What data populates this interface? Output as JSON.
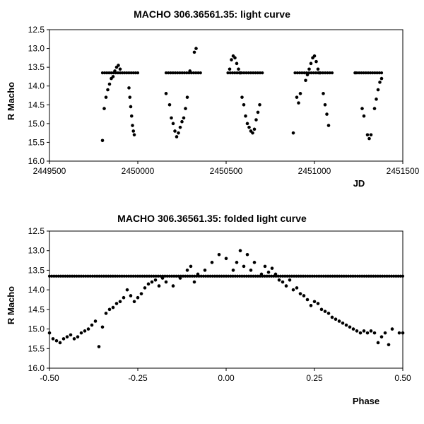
{
  "chart_data": [
    {
      "type": "scatter",
      "title": "MACHO 306.36561.35: light curve",
      "xlabel": "JD",
      "ylabel": "R Macho",
      "xlim": [
        2449500,
        2451500
      ],
      "ylim": [
        12.5,
        16.0
      ],
      "y_inverted": true,
      "xticks": [
        2449500,
        2450000,
        2450500,
        2451000,
        2451500
      ],
      "xtick_labels": [
        "2449500",
        "2450000",
        "2450500",
        "2451000",
        "2451500"
      ],
      "yticks": [
        12.5,
        13.0,
        13.5,
        14.0,
        14.5,
        15.0,
        15.5,
        16.0
      ],
      "ytick_labels": [
        "12.5",
        "13.0",
        "13.5",
        "14.0",
        "14.5",
        "15.0",
        "15.5",
        "16.0"
      ],
      "marker_color": "#000000",
      "baseline_segments": [
        {
          "x_start": 2449800,
          "x_end": 2450000,
          "y": 13.65
        },
        {
          "x_start": 2450160,
          "x_end": 2450355,
          "y": 13.65
        },
        {
          "x_start": 2450510,
          "x_end": 2450705,
          "y": 13.65
        },
        {
          "x_start": 2450890,
          "x_end": 2451100,
          "y": 13.65
        },
        {
          "x_start": 2451240,
          "x_end": 2451380,
          "y": 13.65
        }
      ],
      "points": [
        [
          2449800,
          15.45
        ],
        [
          2449810,
          14.6
        ],
        [
          2449820,
          14.3
        ],
        [
          2449830,
          14.1
        ],
        [
          2449840,
          13.95
        ],
        [
          2449850,
          13.8
        ],
        [
          2449860,
          13.75
        ],
        [
          2449870,
          13.6
        ],
        [
          2449880,
          13.5
        ],
        [
          2449890,
          13.45
        ],
        [
          2449900,
          13.55
        ],
        [
          2449950,
          14.05
        ],
        [
          2449955,
          14.3
        ],
        [
          2449960,
          14.55
        ],
        [
          2449965,
          14.8
        ],
        [
          2449970,
          15.05
        ],
        [
          2449975,
          15.2
        ],
        [
          2449980,
          15.3
        ],
        [
          2450160,
          14.2
        ],
        [
          2450180,
          14.5
        ],
        [
          2450190,
          14.85
        ],
        [
          2450200,
          15.0
        ],
        [
          2450210,
          15.2
        ],
        [
          2450220,
          15.35
        ],
        [
          2450230,
          15.25
        ],
        [
          2450240,
          15.1
        ],
        [
          2450250,
          14.95
        ],
        [
          2450260,
          14.85
        ],
        [
          2450270,
          14.6
        ],
        [
          2450280,
          14.3
        ],
        [
          2450295,
          13.6
        ],
        [
          2450320,
          13.1
        ],
        [
          2450330,
          13.0
        ],
        [
          2450520,
          13.55
        ],
        [
          2450530,
          13.3
        ],
        [
          2450540,
          13.2
        ],
        [
          2450550,
          13.25
        ],
        [
          2450560,
          13.4
        ],
        [
          2450570,
          13.55
        ],
        [
          2450580,
          13.65
        ],
        [
          2450590,
          14.3
        ],
        [
          2450600,
          14.5
        ],
        [
          2450610,
          14.8
        ],
        [
          2450620,
          15.0
        ],
        [
          2450630,
          15.1
        ],
        [
          2450640,
          15.2
        ],
        [
          2450650,
          15.25
        ],
        [
          2450660,
          15.15
        ],
        [
          2450670,
          14.9
        ],
        [
          2450680,
          14.7
        ],
        [
          2450690,
          14.5
        ],
        [
          2450880,
          15.25
        ],
        [
          2450900,
          14.3
        ],
        [
          2450910,
          14.45
        ],
        [
          2450920,
          14.2
        ],
        [
          2450950,
          13.85
        ],
        [
          2450960,
          13.7
        ],
        [
          2450970,
          13.55
        ],
        [
          2450980,
          13.4
        ],
        [
          2450990,
          13.25
        ],
        [
          2451000,
          13.2
        ],
        [
          2451010,
          13.35
        ],
        [
          2451020,
          13.55
        ],
        [
          2451030,
          13.65
        ],
        [
          2451050,
          14.2
        ],
        [
          2451060,
          14.5
        ],
        [
          2451070,
          14.75
        ],
        [
          2451080,
          15.05
        ],
        [
          2451230,
          13.65
        ],
        [
          2451270,
          14.6
        ],
        [
          2451280,
          14.8
        ],
        [
          2451300,
          15.3
        ],
        [
          2451310,
          15.4
        ],
        [
          2451320,
          15.3
        ],
        [
          2451340,
          14.6
        ],
        [
          2451350,
          14.35
        ],
        [
          2451360,
          14.1
        ],
        [
          2451370,
          13.9
        ],
        [
          2451380,
          13.8
        ]
      ]
    },
    {
      "type": "scatter",
      "title": "MACHO 306.36561.35: folded light curve",
      "xlabel": "Phase",
      "ylabel": "R Macho",
      "xlim": [
        -0.5,
        0.5
      ],
      "ylim": [
        12.5,
        16.0
      ],
      "y_inverted": true,
      "xticks": [
        -0.5,
        -0.25,
        0.0,
        0.25,
        0.5
      ],
      "xtick_labels": [
        "-0.50",
        "-0.25",
        "0.00",
        "0.25",
        "0.50"
      ],
      "yticks": [
        12.5,
        13.0,
        13.5,
        14.0,
        14.5,
        15.0,
        15.5,
        16.0
      ],
      "ytick_labels": [
        "12.5",
        "13.0",
        "13.5",
        "14.0",
        "14.5",
        "15.0",
        "15.5",
        "16.0"
      ],
      "marker_color": "#000000",
      "baseline_segments": [
        {
          "x_start": -0.5,
          "x_end": 0.5,
          "y": 13.65
        }
      ],
      "points": [
        [
          -0.5,
          15.1
        ],
        [
          -0.49,
          15.25
        ],
        [
          -0.48,
          15.3
        ],
        [
          -0.47,
          15.35
        ],
        [
          -0.46,
          15.25
        ],
        [
          -0.45,
          15.2
        ],
        [
          -0.44,
          15.15
        ],
        [
          -0.43,
          15.25
        ],
        [
          -0.42,
          15.2
        ],
        [
          -0.41,
          15.1
        ],
        [
          -0.4,
          15.05
        ],
        [
          -0.39,
          15.0
        ],
        [
          -0.38,
          14.9
        ],
        [
          -0.37,
          14.8
        ],
        [
          -0.36,
          15.45
        ],
        [
          -0.35,
          14.95
        ],
        [
          -0.34,
          14.6
        ],
        [
          -0.33,
          14.5
        ],
        [
          -0.32,
          14.45
        ],
        [
          -0.31,
          14.35
        ],
        [
          -0.3,
          14.3
        ],
        [
          -0.29,
          14.2
        ],
        [
          -0.28,
          14.0
        ],
        [
          -0.27,
          14.15
        ],
        [
          -0.26,
          14.3
        ],
        [
          -0.25,
          14.2
        ],
        [
          -0.24,
          14.1
        ],
        [
          -0.23,
          13.95
        ],
        [
          -0.22,
          13.85
        ],
        [
          -0.21,
          13.8
        ],
        [
          -0.2,
          13.75
        ],
        [
          -0.19,
          13.9
        ],
        [
          -0.18,
          13.7
        ],
        [
          -0.17,
          13.8
        ],
        [
          -0.15,
          13.9
        ],
        [
          -0.13,
          13.7
        ],
        [
          -0.11,
          13.5
        ],
        [
          -0.1,
          13.4
        ],
        [
          -0.09,
          13.8
        ],
        [
          -0.08,
          13.6
        ],
        [
          -0.06,
          13.5
        ],
        [
          -0.04,
          13.3
        ],
        [
          -0.02,
          13.1
        ],
        [
          0.0,
          13.2
        ],
        [
          0.02,
          13.5
        ],
        [
          0.03,
          13.3
        ],
        [
          0.04,
          13.0
        ],
        [
          0.05,
          13.4
        ],
        [
          0.06,
          13.1
        ],
        [
          0.07,
          13.5
        ],
        [
          0.08,
          13.3
        ],
        [
          0.1,
          13.6
        ],
        [
          0.11,
          13.4
        ],
        [
          0.12,
          13.55
        ],
        [
          0.13,
          13.45
        ],
        [
          0.14,
          13.6
        ],
        [
          0.15,
          13.75
        ],
        [
          0.16,
          13.8
        ],
        [
          0.17,
          13.9
        ],
        [
          0.18,
          13.75
        ],
        [
          0.19,
          14.0
        ],
        [
          0.2,
          13.95
        ],
        [
          0.21,
          14.1
        ],
        [
          0.22,
          14.15
        ],
        [
          0.23,
          14.25
        ],
        [
          0.24,
          14.4
        ],
        [
          0.25,
          14.3
        ],
        [
          0.26,
          14.35
        ],
        [
          0.27,
          14.5
        ],
        [
          0.28,
          14.55
        ],
        [
          0.29,
          14.6
        ],
        [
          0.3,
          14.7
        ],
        [
          0.31,
          14.75
        ],
        [
          0.32,
          14.8
        ],
        [
          0.33,
          14.85
        ],
        [
          0.34,
          14.9
        ],
        [
          0.35,
          14.95
        ],
        [
          0.36,
          15.0
        ],
        [
          0.37,
          15.05
        ],
        [
          0.38,
          15.1
        ],
        [
          0.39,
          15.05
        ],
        [
          0.4,
          15.1
        ],
        [
          0.41,
          15.05
        ],
        [
          0.42,
          15.1
        ],
        [
          0.43,
          15.35
        ],
        [
          0.44,
          15.2
        ],
        [
          0.45,
          15.1
        ],
        [
          0.46,
          15.4
        ],
        [
          0.47,
          15.0
        ],
        [
          0.49,
          15.1
        ],
        [
          0.5,
          15.1
        ]
      ]
    }
  ]
}
